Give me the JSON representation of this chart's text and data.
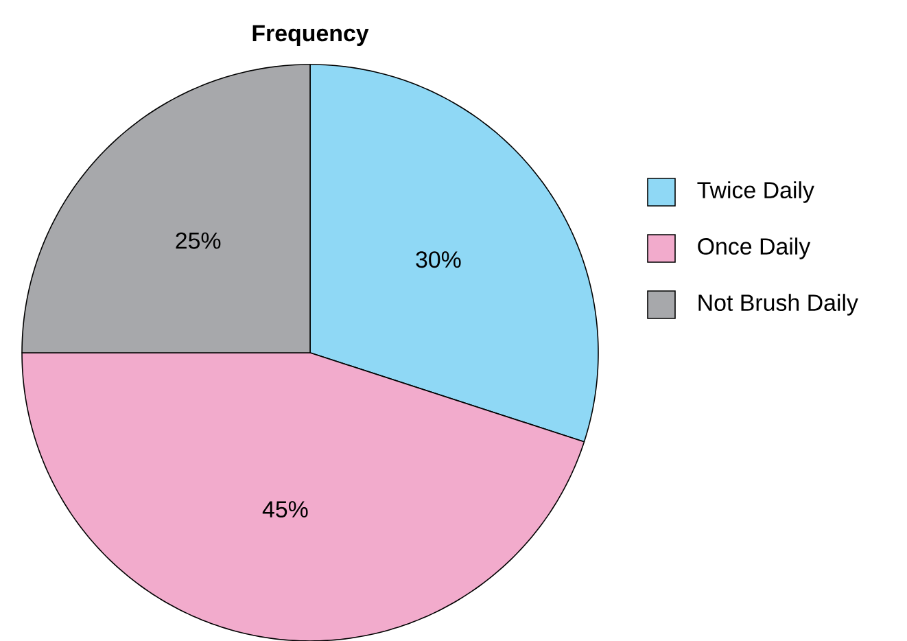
{
  "chart_data": {
    "type": "pie",
    "title": "Frequency",
    "categories": [
      "Twice Daily",
      "Once Daily",
      "Not Brush Daily"
    ],
    "values": [
      30,
      45,
      25
    ],
    "colors": [
      "#8fd8f5",
      "#f2abcc",
      "#a7a8ab"
    ],
    "value_labels": [
      "30%",
      "45%",
      "25%"
    ],
    "legend": "right"
  }
}
